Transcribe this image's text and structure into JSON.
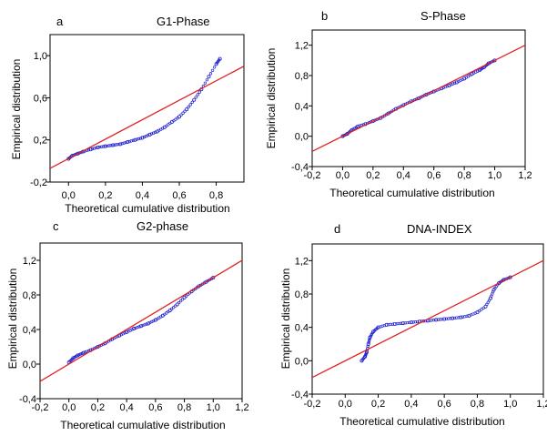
{
  "chart_data": [
    {
      "type": "scatter",
      "letter": "a",
      "title": "G1-Phase",
      "xlabel": "Theoretical cumulative distribution",
      "ylabel": "Empirical distribution",
      "xlim": [
        -0.1,
        0.95
      ],
      "ylim": [
        -0.2,
        1.2
      ],
      "xticks": [
        0.0,
        0.2,
        0.4,
        0.6,
        0.8
      ],
      "xtick_labels": [
        "0,0",
        "0,2",
        "0,4",
        "0,6",
        "0,8"
      ],
      "yticks": [
        -0.2,
        0.2,
        0.6,
        1.0
      ],
      "ytick_labels": [
        "-0,2",
        "0,2",
        "0,6",
        "1,0"
      ],
      "grid": false,
      "series": [
        {
          "kind": "points",
          "color": "#1f1fd0",
          "x": [
            0.0,
            0.02,
            0.05,
            0.08,
            0.12,
            0.16,
            0.2,
            0.24,
            0.28,
            0.32,
            0.36,
            0.4,
            0.44,
            0.48,
            0.52,
            0.56,
            0.6,
            0.64,
            0.68,
            0.72,
            0.76,
            0.8,
            0.82
          ],
          "y": [
            0.02,
            0.05,
            0.07,
            0.09,
            0.11,
            0.13,
            0.14,
            0.15,
            0.16,
            0.18,
            0.2,
            0.22,
            0.25,
            0.28,
            0.32,
            0.37,
            0.42,
            0.49,
            0.58,
            0.68,
            0.8,
            0.92,
            0.97
          ]
        },
        {
          "kind": "line",
          "color": "#e02020",
          "x": [
            -0.1,
            0.95
          ],
          "y": [
            -0.07,
            0.9
          ]
        }
      ]
    },
    {
      "type": "scatter",
      "letter": "b",
      "title": "S-Phase",
      "xlabel": "Theoretical cumulative distribution",
      "ylabel": "Empirical distribution",
      "xlim": [
        -0.2,
        1.2
      ],
      "ylim": [
        -0.4,
        1.4
      ],
      "xticks": [
        -0.2,
        0.0,
        0.2,
        0.4,
        0.6,
        0.8,
        1.0,
        1.2
      ],
      "xtick_labels": [
        "-0,2",
        "0,0",
        "0,2",
        "0,4",
        "0,6",
        "0,8",
        "1,0",
        "1,2"
      ],
      "yticks": [
        -0.4,
        0.0,
        0.4,
        0.8,
        1.2
      ],
      "ytick_labels": [
        "-0,4",
        "0,0",
        "0,4",
        "0,8",
        "1,2"
      ],
      "grid": false,
      "series": [
        {
          "kind": "points",
          "color": "#1f1fd0",
          "x": [
            0.0,
            0.03,
            0.06,
            0.1,
            0.15,
            0.2,
            0.25,
            0.3,
            0.35,
            0.4,
            0.45,
            0.5,
            0.55,
            0.6,
            0.65,
            0.7,
            0.75,
            0.8,
            0.85,
            0.9,
            0.93,
            0.96,
            1.0
          ],
          "y": [
            0.0,
            0.03,
            0.08,
            0.13,
            0.16,
            0.2,
            0.24,
            0.3,
            0.36,
            0.41,
            0.46,
            0.5,
            0.55,
            0.59,
            0.63,
            0.67,
            0.71,
            0.76,
            0.82,
            0.87,
            0.91,
            0.96,
            1.0
          ]
        },
        {
          "kind": "line",
          "color": "#e02020",
          "x": [
            -0.2,
            1.2
          ],
          "y": [
            -0.2,
            1.2
          ]
        }
      ]
    },
    {
      "type": "scatter",
      "letter": "c",
      "title": "G2-phase",
      "xlabel": "Theoretical cumulative distribution",
      "ylabel": "Empirical distribution",
      "xlim": [
        -0.2,
        1.2
      ],
      "ylim": [
        -0.4,
        1.4
      ],
      "xticks": [
        -0.2,
        0.0,
        0.2,
        0.4,
        0.6,
        0.8,
        1.0,
        1.2
      ],
      "xtick_labels": [
        "-0,2",
        "0,0",
        "0,2",
        "0,4",
        "0,6",
        "0,8",
        "1,0",
        "1,2"
      ],
      "yticks": [
        -0.4,
        0.0,
        0.4,
        0.8,
        1.2
      ],
      "ytick_labels": [
        "-0,4",
        "0,0",
        "0,4",
        "0,8",
        "1,2"
      ],
      "grid": false,
      "series": [
        {
          "kind": "points",
          "color": "#1f1fd0",
          "x": [
            0.0,
            0.03,
            0.06,
            0.1,
            0.15,
            0.2,
            0.25,
            0.3,
            0.35,
            0.4,
            0.45,
            0.5,
            0.55,
            0.6,
            0.65,
            0.7,
            0.75,
            0.8,
            0.85,
            0.9,
            0.95,
            1.0
          ],
          "y": [
            0.02,
            0.07,
            0.1,
            0.13,
            0.16,
            0.2,
            0.24,
            0.29,
            0.33,
            0.37,
            0.41,
            0.44,
            0.47,
            0.51,
            0.56,
            0.62,
            0.69,
            0.77,
            0.84,
            0.9,
            0.95,
            1.0
          ]
        },
        {
          "kind": "line",
          "color": "#e02020",
          "x": [
            -0.2,
            1.2
          ],
          "y": [
            -0.2,
            1.2
          ]
        }
      ]
    },
    {
      "type": "scatter",
      "letter": "d",
      "title": "DNA-INDEX",
      "xlabel": "Theoretical cumulative distribution",
      "ylabel": "Empirical distribution",
      "xlim": [
        -0.2,
        1.2
      ],
      "ylim": [
        -0.4,
        1.4
      ],
      "xticks": [
        -0.2,
        0.0,
        0.2,
        0.4,
        0.6,
        0.8,
        1.0,
        1.2
      ],
      "xtick_labels": [
        "-0,2",
        "0,0",
        "0,2",
        "0,4",
        "0,6",
        "0,8",
        "1,0",
        "1,2"
      ],
      "yticks": [
        -0.4,
        0.0,
        0.4,
        0.8,
        1.2
      ],
      "ytick_labels": [
        "-0,4",
        "0,0",
        "0,4",
        "0,8",
        "1,2"
      ],
      "grid": false,
      "series": [
        {
          "kind": "points",
          "color": "#1f1fd0",
          "x": [
            0.1,
            0.12,
            0.13,
            0.14,
            0.15,
            0.17,
            0.2,
            0.25,
            0.3,
            0.35,
            0.4,
            0.45,
            0.5,
            0.55,
            0.6,
            0.65,
            0.7,
            0.75,
            0.8,
            0.85,
            0.88,
            0.9,
            0.93,
            0.96,
            1.0
          ],
          "y": [
            0.0,
            0.05,
            0.1,
            0.2,
            0.28,
            0.35,
            0.4,
            0.43,
            0.44,
            0.45,
            0.46,
            0.47,
            0.48,
            0.49,
            0.5,
            0.51,
            0.52,
            0.54,
            0.58,
            0.65,
            0.75,
            0.85,
            0.93,
            0.97,
            1.0
          ]
        },
        {
          "kind": "line",
          "color": "#e02020",
          "x": [
            -0.2,
            1.2
          ],
          "y": [
            -0.2,
            1.2
          ]
        }
      ]
    }
  ]
}
